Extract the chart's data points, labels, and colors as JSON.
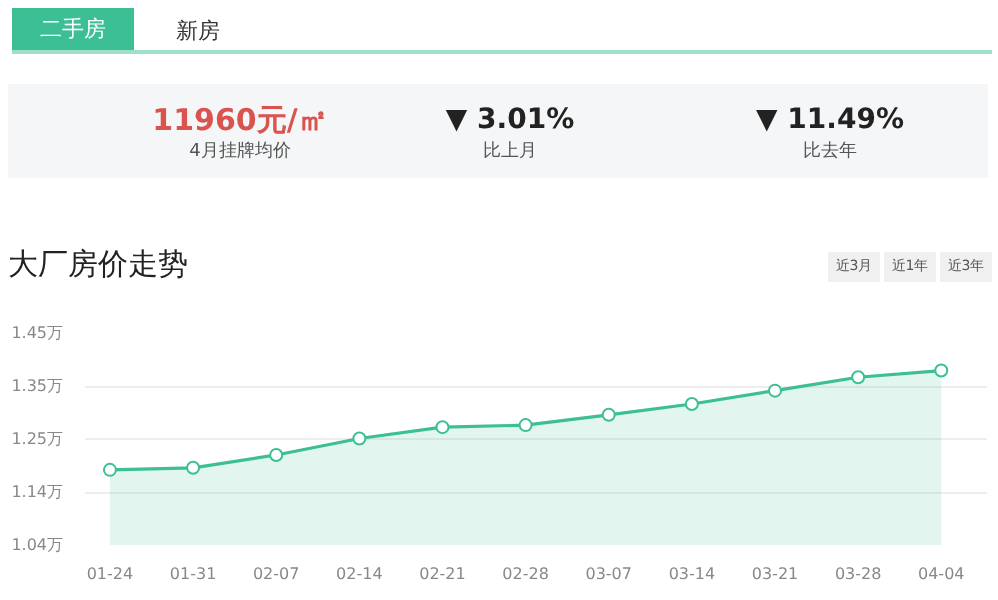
{
  "chart_data": {
    "type": "area",
    "title": "大厂房价走势",
    "categories": [
      "01-24",
      "01-31",
      "02-07",
      "02-14",
      "02-21",
      "02-28",
      "03-07",
      "03-14",
      "03-21",
      "03-28",
      "04-04"
    ],
    "values": [
      1.186,
      1.19,
      1.215,
      1.247,
      1.269,
      1.273,
      1.293,
      1.314,
      1.34,
      1.366,
      1.379
    ],
    "color": "#3dbf96",
    "marker": "circle",
    "grid": "y",
    "ylim": [
      1.04,
      1.452
    ],
    "yticks": [
      {
        "value": 1.04,
        "label": "1.04万"
      },
      {
        "value": 1.143,
        "label": "1.14万"
      },
      {
        "value": 1.246,
        "label": "1.25万"
      },
      {
        "value": 1.349,
        "label": "1.35万"
      },
      {
        "value": 1.452,
        "label": "1.45万"
      }
    ],
    "annotations": [
      "二手房",
      "新房",
      "11960元/㎡",
      "4月挂牌均价",
      "▼ 3.01%",
      "比上月",
      "▼ 11.49%",
      "比去年",
      "近3月",
      "近1年",
      "近3年"
    ]
  }
}
